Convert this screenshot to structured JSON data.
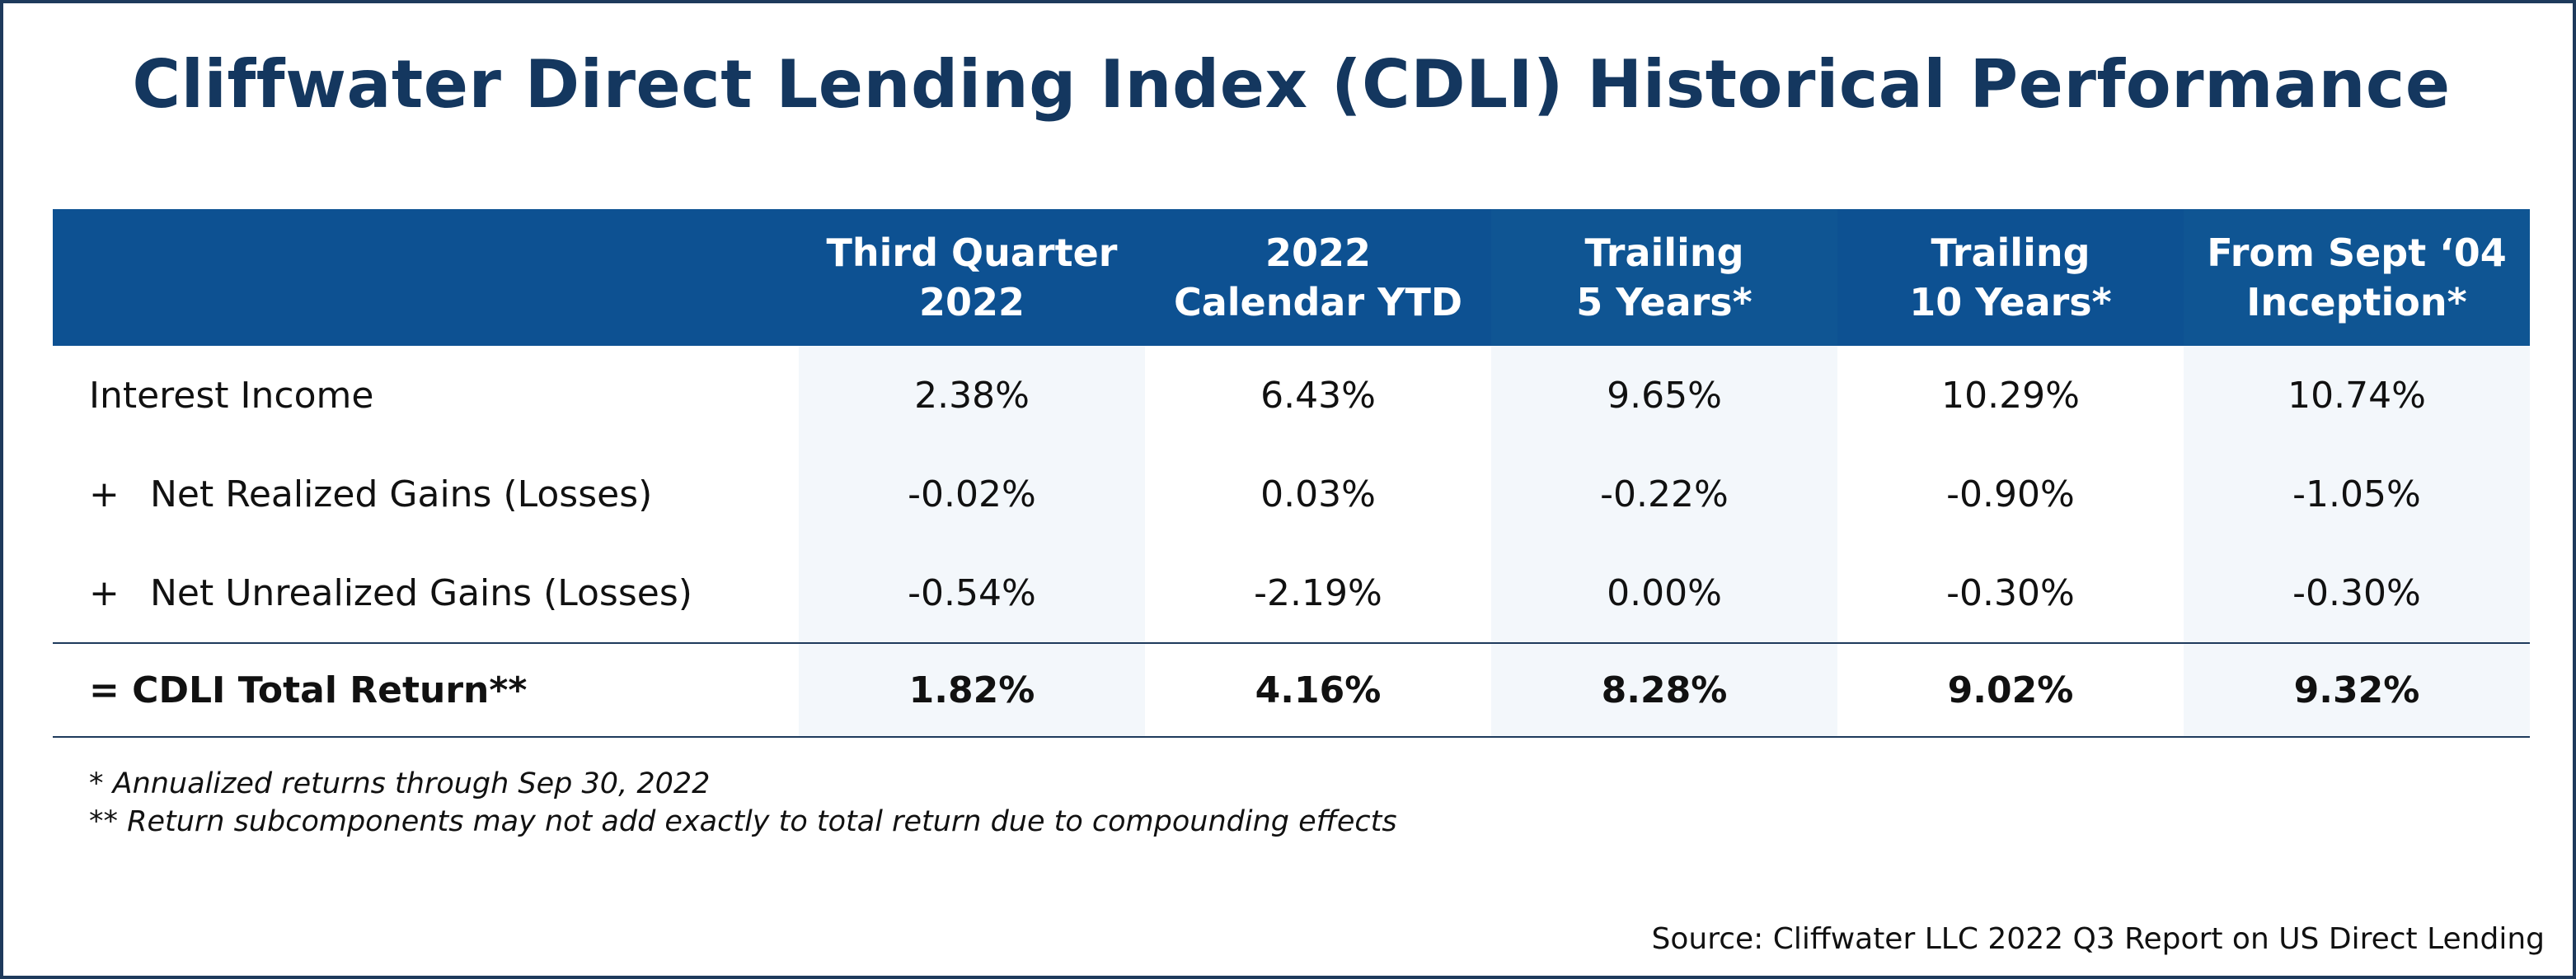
{
  "title": "Cliffwater Direct Lending Index (CDLI) Historical Performance",
  "chart_data": {
    "type": "table",
    "title": "Cliffwater Direct Lending Index (CDLI) Historical Performance",
    "columns": [
      {
        "line1": "Third Quarter",
        "line2": "2022"
      },
      {
        "line1": "2022",
        "line2": "Calendar YTD"
      },
      {
        "line1": "Trailing",
        "line2": "5 Years*"
      },
      {
        "line1": "Trailing",
        "line2": "10 Years*"
      },
      {
        "line1": "From Sept ‘04",
        "line2": "Inception*"
      }
    ],
    "rows": [
      {
        "prefix": "",
        "label": "Interest Income",
        "values": [
          "2.38%",
          "6.43%",
          "9.65%",
          "10.29%",
          "10.74%"
        ]
      },
      {
        "prefix": "+",
        "label": "Net Realized Gains (Losses)",
        "values": [
          "-0.02%",
          "0.03%",
          "-0.22%",
          "-0.90%",
          "-1.05%"
        ]
      },
      {
        "prefix": "+",
        "label": "Net Unrealized Gains (Losses)",
        "values": [
          "-0.54%",
          "-2.19%",
          "0.00%",
          "-0.30%",
          "-0.30%"
        ]
      }
    ],
    "total": {
      "label": "= CDLI Total Return**",
      "values": [
        "1.82%",
        "4.16%",
        "8.28%",
        "9.02%",
        "9.32%"
      ]
    }
  },
  "notes": [
    "* Annualized returns through Sep 30, 2022",
    "** Return subcomponents may not add exactly to total return due to compounding effects"
  ],
  "source": "Source: Cliffwater LLC 2022 Q3 Report on US Direct Lending",
  "colors": {
    "header_bg": "#0d5192",
    "title": "#14375f",
    "border": "#1e3a5c",
    "shade": "#f3f7fb"
  }
}
